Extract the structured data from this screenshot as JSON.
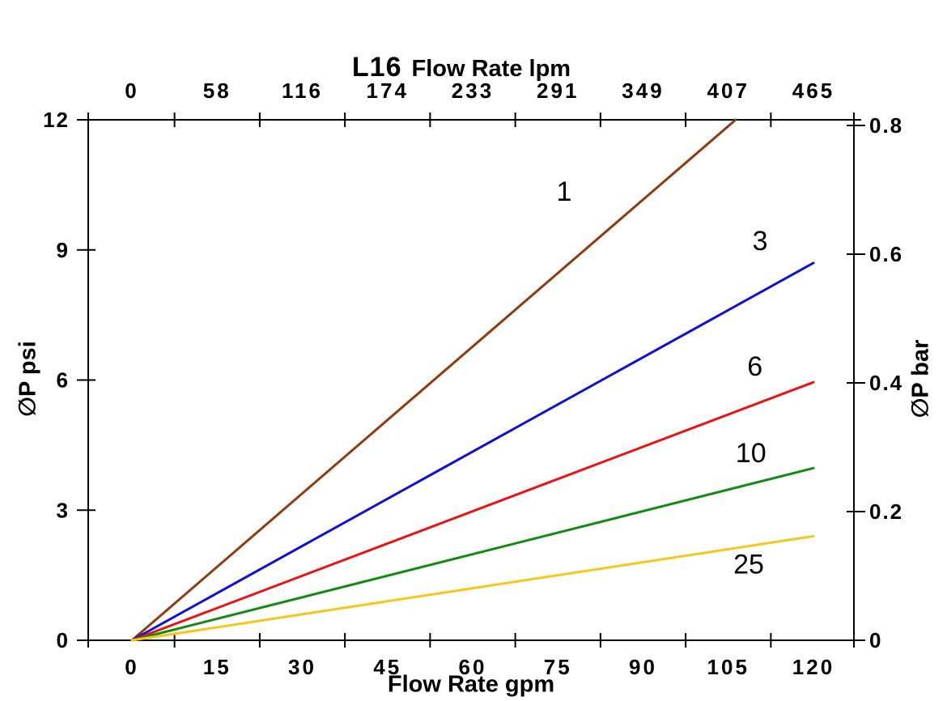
{
  "chart_data": {
    "type": "line",
    "title": {
      "model": "L16",
      "text": "Flow Rate lpm"
    },
    "axes": {
      "top": {
        "label": "Flow Rate lpm",
        "ticks": [
          "0",
          "58",
          "116",
          "174",
          "233",
          "291",
          "349",
          "407",
          "465"
        ],
        "range": [
          0,
          465
        ],
        "unit": "lpm"
      },
      "bottom": {
        "label": "Flow Rate gpm",
        "ticks": [
          "0",
          "15",
          "30",
          "45",
          "60",
          "75",
          "90",
          "105",
          "120"
        ],
        "range": [
          0,
          120
        ],
        "unit": "gpm"
      },
      "left": {
        "label": "∅P psi",
        "ticks": [
          "0",
          "3",
          "6",
          "9",
          "12"
        ],
        "range": [
          0,
          12
        ],
        "unit": "psi"
      },
      "right": {
        "label": "∅P bar",
        "ticks": [
          "0",
          "0.2",
          "0.4",
          "0.6",
          "0.8"
        ],
        "range": [
          0,
          0.8
        ],
        "unit": "bar"
      }
    },
    "grid": false,
    "legend": "inline-labels",
    "axis_color": "#000000",
    "text_color": "#000000",
    "series": [
      {
        "label": "1",
        "color": "#8F3B0F",
        "points": [
          [
            0,
            0
          ],
          [
            106.3,
            12.0
          ]
        ],
        "label_at": [
          76.1,
          10.36
        ]
      },
      {
        "label": "3",
        "color": "#1010D6",
        "points": [
          [
            0,
            0
          ],
          [
            120,
            8.7
          ]
        ],
        "label_at": [
          110.6,
          9.22
        ]
      },
      {
        "label": "6",
        "color": "#EE1111",
        "points": [
          [
            0,
            0
          ],
          [
            120,
            5.95
          ]
        ],
        "label_at": [
          109.7,
          6.33
        ]
      },
      {
        "label": "10",
        "color": "#108A10",
        "points": [
          [
            0,
            0
          ],
          [
            120,
            3.97
          ]
        ],
        "label_at": [
          109.0,
          4.33
        ]
      },
      {
        "label": "25",
        "color": "#F6C61A",
        "points": [
          [
            0,
            0
          ],
          [
            120,
            2.4
          ]
        ],
        "label_at": [
          108.6,
          1.76
        ]
      }
    ]
  }
}
